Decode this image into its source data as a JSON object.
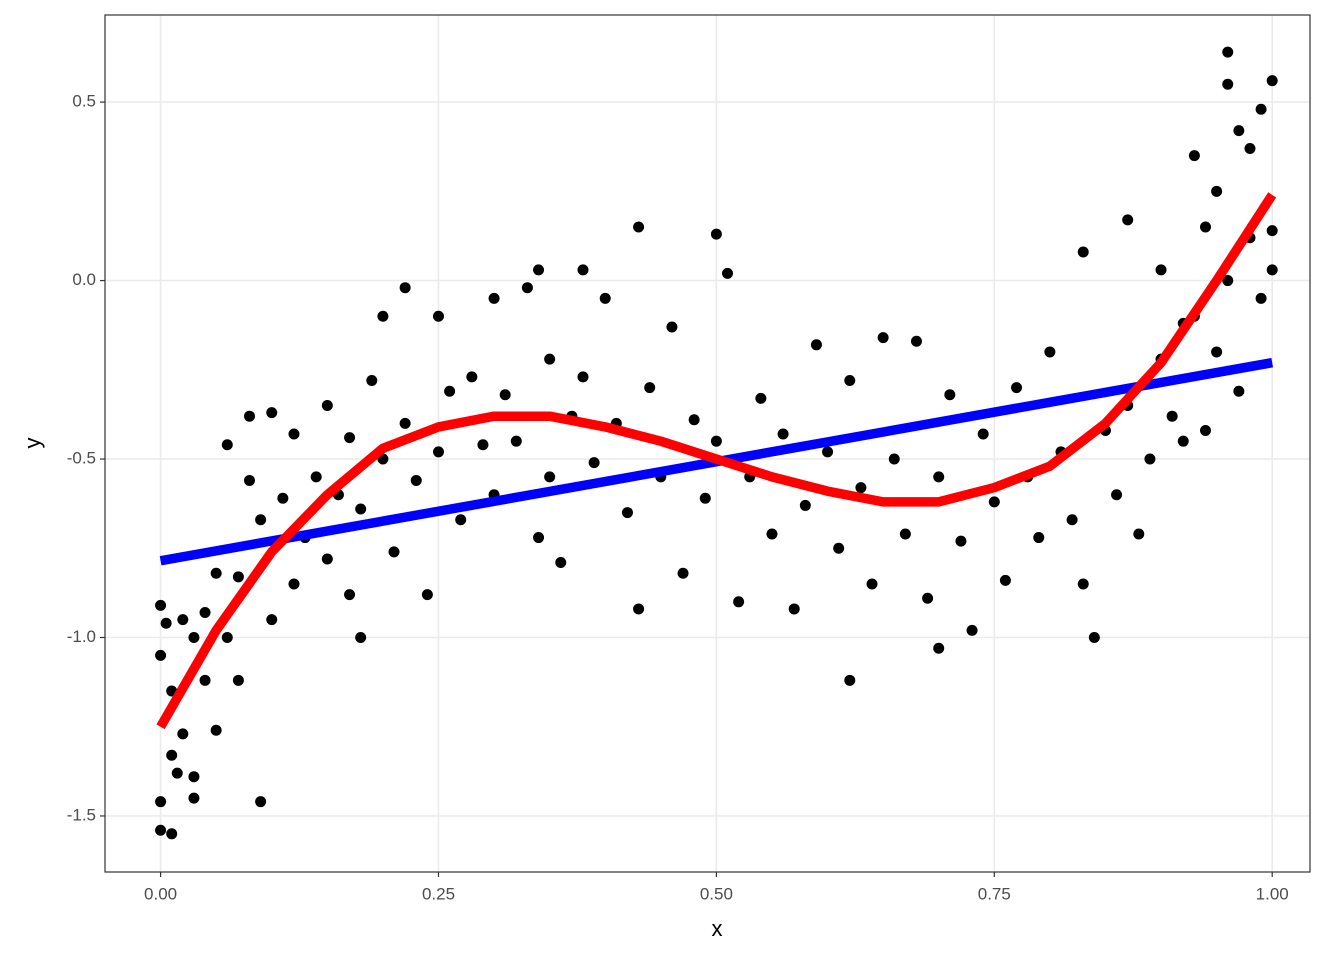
{
  "chart_data": {
    "type": "scatter",
    "xlabel": "x",
    "ylabel": "y",
    "xlim": [
      -0.05,
      1.034
    ],
    "ylim": [
      -1.657,
      0.744
    ],
    "xticks": [
      {
        "value": 0,
        "label": "0.00"
      },
      {
        "value": 0.25,
        "label": "0.25"
      },
      {
        "value": 0.5,
        "label": "0.50"
      },
      {
        "value": 0.75,
        "label": "0.75"
      },
      {
        "value": 1,
        "label": "1.00"
      }
    ],
    "yticks": [
      {
        "value": -1.5,
        "label": "-1.5"
      },
      {
        "value": -1,
        "label": "-1.0"
      },
      -0.5,
      {
        "value": 0,
        "label": "0.0"
      },
      0.5
    ],
    "grid": true,
    "series": [
      {
        "type": "scatter",
        "color": "#000000",
        "x": [
          0,
          0,
          0,
          0,
          0.005,
          0.01,
          0.01,
          0.01,
          0.015,
          0.02,
          0.02,
          0.03,
          0.03,
          0.03,
          0.04,
          0.04,
          0.05,
          0.05,
          0.06,
          0.06,
          0.07,
          0.07,
          0.08,
          0.08,
          0.09,
          0.09,
          0.1,
          0.1,
          0.11,
          0.12,
          0.12,
          0.13,
          0.14,
          0.15,
          0.15,
          0.16,
          0.17,
          0.17,
          0.18,
          0.18,
          0.19,
          0.2,
          0.2,
          0.21,
          0.22,
          0.22,
          0.23,
          0.24,
          0.25,
          0.25,
          0.26,
          0.27,
          0.28,
          0.29,
          0.3,
          0.3,
          0.31,
          0.32,
          0.33,
          0.34,
          0.34,
          0.35,
          0.35,
          0.36,
          0.37,
          0.38,
          0.38,
          0.39,
          0.4,
          0.41,
          0.42,
          0.43,
          0.43,
          0.44,
          0.45,
          0.46,
          0.47,
          0.48,
          0.49,
          0.5,
          0.5,
          0.51,
          0.52,
          0.53,
          0.54,
          0.55,
          0.56,
          0.57,
          0.58,
          0.59,
          0.6,
          0.61,
          0.62,
          0.62,
          0.63,
          0.64,
          0.65,
          0.66,
          0.67,
          0.68,
          0.69,
          0.7,
          0.7,
          0.71,
          0.72,
          0.73,
          0.74,
          0.75,
          0.76,
          0.77,
          0.78,
          0.79,
          0.8,
          0.81,
          0.82,
          0.83,
          0.83,
          0.84,
          0.85,
          0.86,
          0.87,
          0.87,
          0.88,
          0.89,
          0.9,
          0.9,
          0.91,
          0.92,
          0.92,
          0.93,
          0.93,
          0.94,
          0.94,
          0.95,
          0.95,
          0.96,
          0.96,
          0.96,
          0.97,
          0.97,
          0.98,
          0.98,
          0.99,
          0.99,
          1,
          1,
          1
        ],
        "values": [
          -0.91,
          -1.05,
          -1.46,
          -1.54,
          -0.96,
          -1.33,
          -1.55,
          -1.15,
          -1.38,
          -0.95,
          -1.27,
          -1.0,
          -1.39,
          -1.45,
          -1.12,
          -0.93,
          -0.82,
          -1.26,
          -0.46,
          -1.0,
          -0.83,
          -1.12,
          -0.38,
          -0.56,
          -1.46,
          -0.67,
          -0.37,
          -0.95,
          -0.61,
          -0.43,
          -0.85,
          -0.72,
          -0.55,
          -0.35,
          -0.78,
          -0.6,
          -0.44,
          -0.88,
          -1.0,
          -0.64,
          -0.28,
          -0.1,
          -0.5,
          -0.76,
          -0.02,
          -0.4,
          -0.56,
          -0.88,
          -0.1,
          -0.48,
          -0.31,
          -0.67,
          -0.27,
          -0.46,
          -0.05,
          -0.6,
          -0.32,
          -0.45,
          -0.02,
          0.03,
          -0.72,
          -0.22,
          -0.55,
          -0.79,
          -0.38,
          0.03,
          -0.27,
          -0.51,
          -0.05,
          -0.4,
          -0.65,
          0.15,
          -0.92,
          -0.3,
          -0.55,
          -0.13,
          -0.82,
          -0.39,
          -0.61,
          0.13,
          -0.45,
          0.02,
          -0.9,
          -0.55,
          -0.33,
          -0.71,
          -0.43,
          -0.92,
          -0.63,
          -0.18,
          -0.48,
          -0.75,
          -1.12,
          -0.28,
          -0.58,
          -0.85,
          -0.16,
          -0.5,
          -0.71,
          -0.17,
          -0.89,
          -1.03,
          -0.55,
          -0.32,
          -0.73,
          -0.98,
          -0.43,
          -0.62,
          -0.84,
          -0.3,
          -0.55,
          -0.72,
          -0.2,
          -0.48,
          -0.67,
          0.08,
          -0.85,
          -1.0,
          -0.42,
          -0.6,
          0.17,
          -0.35,
          -0.71,
          -0.5,
          0.03,
          -0.22,
          -0.38,
          -0.12,
          -0.45,
          0.35,
          -0.1,
          0.15,
          -0.42,
          -0.2,
          0.25,
          0.64,
          0.55,
          0.0,
          0.42,
          -0.31,
          0.37,
          0.12,
          0.48,
          -0.05,
          0.56,
          0.14,
          0.03
        ]
      },
      {
        "type": "line",
        "color": "#0000ff",
        "x": [
          0,
          1
        ],
        "values": [
          -0.785,
          -0.23
        ]
      },
      {
        "type": "line",
        "color": "#ff0000",
        "x": [
          0,
          0.05,
          0.1,
          0.15,
          0.2,
          0.25,
          0.3,
          0.35,
          0.4,
          0.45,
          0.5,
          0.55,
          0.6,
          0.65,
          0.7,
          0.75,
          0.8,
          0.85,
          0.9,
          0.95,
          1
        ],
        "values": [
          -1.25,
          -0.98,
          -0.76,
          -0.6,
          -0.47,
          -0.41,
          -0.38,
          -0.38,
          -0.41,
          -0.45,
          -0.5,
          -0.55,
          -0.59,
          -0.62,
          -0.62,
          -0.58,
          -0.52,
          -0.4,
          -0.23,
          0.0,
          0.24
        ]
      }
    ]
  }
}
